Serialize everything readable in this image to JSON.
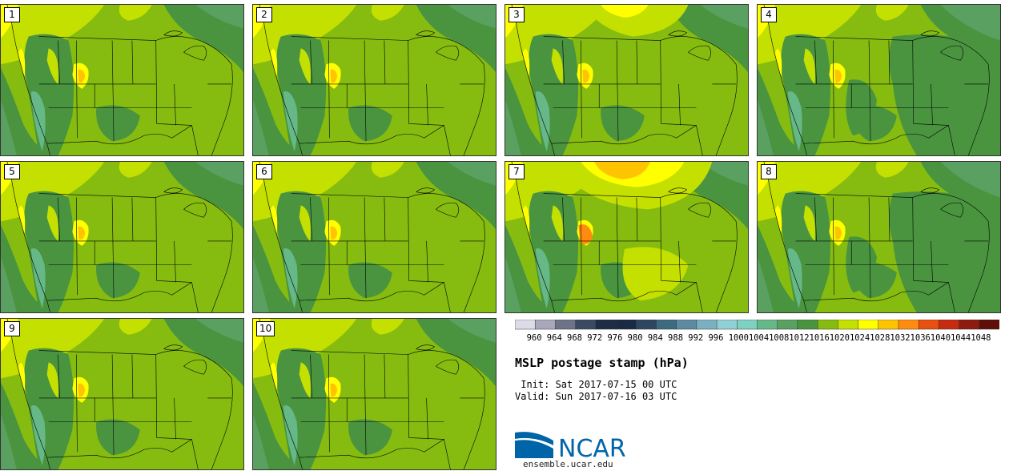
{
  "members": [
    {
      "label": "1",
      "variant": "base"
    },
    {
      "label": "2",
      "variant": "base"
    },
    {
      "label": "3",
      "variant": "high_north"
    },
    {
      "label": "4",
      "variant": "low_east"
    },
    {
      "label": "5",
      "variant": "base"
    },
    {
      "label": "6",
      "variant": "base"
    },
    {
      "label": "7",
      "variant": "strong_high"
    },
    {
      "label": "8",
      "variant": "low_east"
    },
    {
      "label": "9",
      "variant": "base"
    },
    {
      "label": "10",
      "variant": "base"
    }
  ],
  "colorbar": {
    "levels": [
      "960",
      "964",
      "968",
      "972",
      "976",
      "980",
      "984",
      "988",
      "992",
      "996",
      "1000",
      "1004",
      "1008",
      "1012",
      "1016",
      "1020",
      "1024",
      "1028",
      "1032",
      "1036",
      "1040",
      "1044",
      "1048"
    ],
    "colors": [
      "#dcdce8",
      "#a8a8ba",
      "#6e7488",
      "#3a4a62",
      "#1e2c44",
      "#1a2a44",
      "#2e4660",
      "#3e6a80",
      "#5c8aa0",
      "#7ab0c0",
      "#90d0d4",
      "#7ed0c0",
      "#66b888",
      "#5aa060",
      "#4a9440",
      "#86bc10",
      "#c4e000",
      "#ffff00",
      "#ffc400",
      "#ff8c10",
      "#e85010",
      "#c82a10",
      "#8e1a10",
      "#5e1008"
    ]
  },
  "map_colors": {
    "c1004": "#7ed0c0",
    "c1008": "#66b888",
    "c1012": "#5aa060",
    "c1016": "#4a9440",
    "c1020": "#86bc10",
    "c1024": "#c4e000",
    "c1028": "#ffff00",
    "c1032": "#ffc400",
    "c1036": "#ff8c10",
    "border": "#000000"
  },
  "title": "MSLP postage stamp (hPa)",
  "init_line": " Init: Sat 2017-07-15 00 UTC",
  "valid_line": "Valid: Sun 2017-07-16 03 UTC",
  "logo": {
    "text": "NCAR",
    "icon": "ncar-swoosh-icon",
    "blue": "#0064a8"
  },
  "footer_url": "ensemble.ucar.edu"
}
